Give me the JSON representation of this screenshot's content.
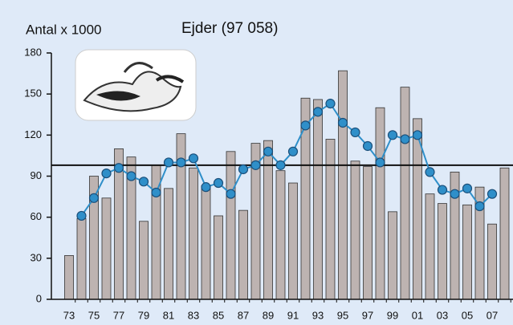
{
  "chart_data": {
    "type": "bar_line",
    "title": "Ejder (97 058)",
    "y_label": "Antal x 1000",
    "categories": [
      "73",
      null,
      "75",
      null,
      "77",
      null,
      "79",
      null,
      "81",
      null,
      "83",
      null,
      "85",
      null,
      "87",
      null,
      "89",
      null,
      "91",
      null,
      "93",
      null,
      "95",
      null,
      "97",
      null,
      "99",
      null,
      "01",
      null,
      "03",
      null,
      "05",
      null,
      "07",
      null
    ],
    "series": [
      {
        "type": "bar",
        "color": "#bdb3b1",
        "values": [
          32,
          59,
          90,
          74,
          110,
          104,
          57,
          98,
          81,
          121,
          96,
          83,
          61,
          108,
          65,
          114,
          116,
          94,
          85,
          147,
          146,
          117,
          167,
          101,
          97,
          140,
          64,
          155,
          132,
          77,
          70,
          93,
          69,
          82,
          55,
          96
        ]
      },
      {
        "type": "line",
        "color": "#2f8fc9",
        "values": [
          null,
          61,
          74,
          92,
          96,
          90,
          86,
          78,
          100,
          100,
          103,
          82,
          85,
          77,
          95,
          98,
          108,
          98,
          108,
          127,
          137,
          143,
          129,
          122,
          112,
          100,
          120,
          117,
          120,
          93,
          80,
          77,
          81,
          68,
          77,
          null
        ]
      }
    ],
    "reference_line": 98,
    "ylim": [
      0,
      180
    ],
    "yticks": [
      0,
      30,
      60,
      90,
      120,
      150,
      180
    ]
  }
}
